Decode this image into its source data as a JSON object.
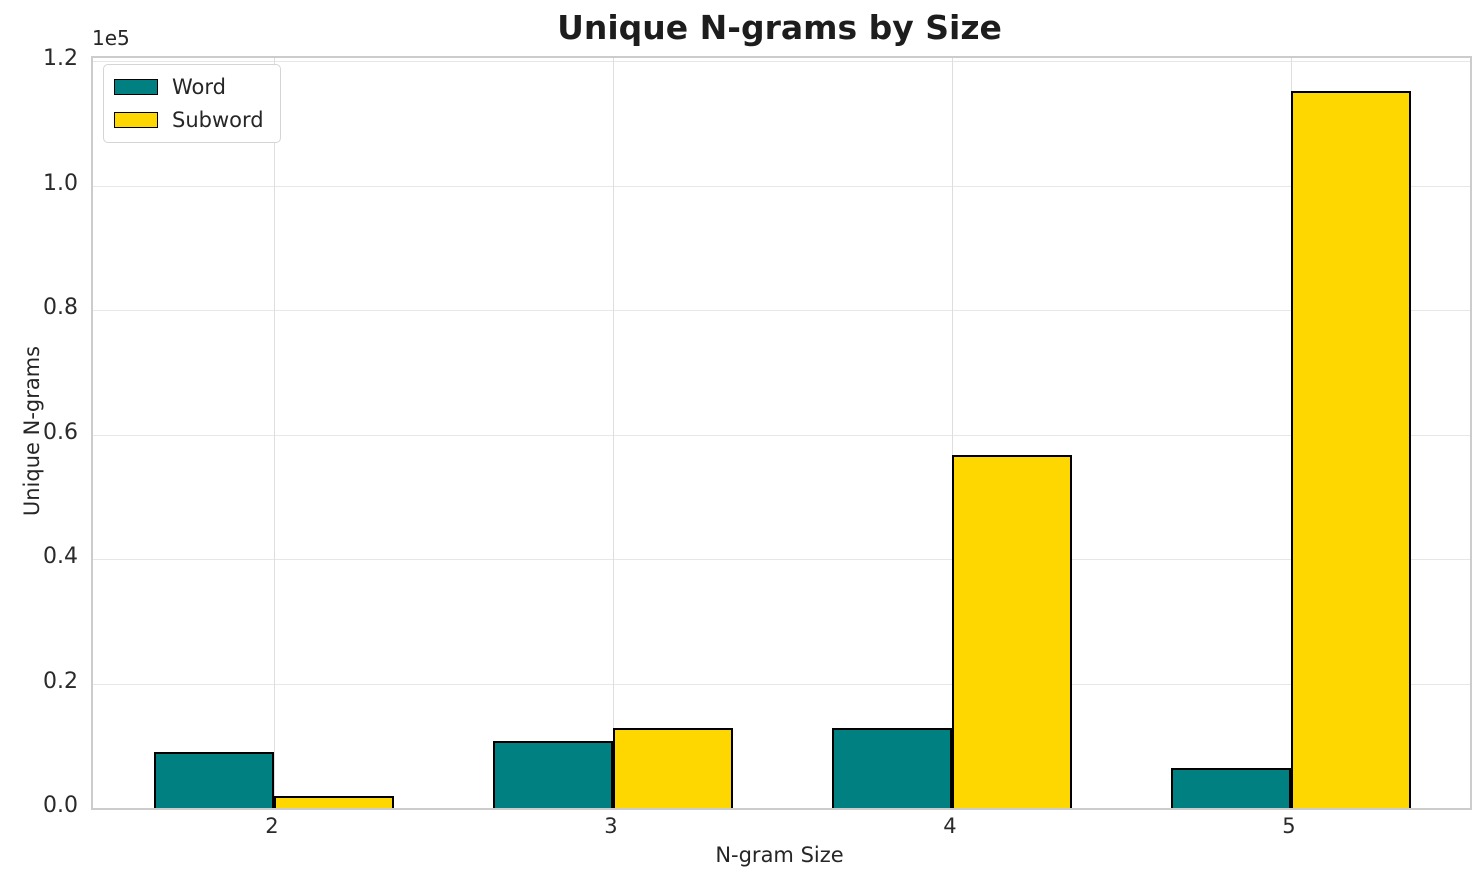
{
  "chart_data": {
    "type": "bar",
    "title": "Unique N-grams by Size",
    "xlabel": "N-gram Size",
    "ylabel": "Unique N-grams",
    "offset_text": "1e5",
    "categories": [
      "2",
      "3",
      "4",
      "5"
    ],
    "series": [
      {
        "name": "Word",
        "color": "#008080",
        "values": [
          9000,
          10800,
          12900,
          6400
        ]
      },
      {
        "name": "Subword",
        "color": "#ffd700",
        "values": [
          1900,
          12900,
          56700,
          115200
        ]
      }
    ],
    "bar_edge_color": "#000000",
    "ylim": [
      0,
      120500
    ],
    "yticks": [
      0,
      20000,
      40000,
      60000,
      80000,
      100000,
      120000
    ],
    "yticklabels": [
      "0.0",
      "0.2",
      "0.4",
      "0.6",
      "0.8",
      "1.0",
      "1.2"
    ],
    "grid": true,
    "legend": {
      "position": "upper left",
      "entries": [
        "Word",
        "Subword"
      ]
    }
  }
}
